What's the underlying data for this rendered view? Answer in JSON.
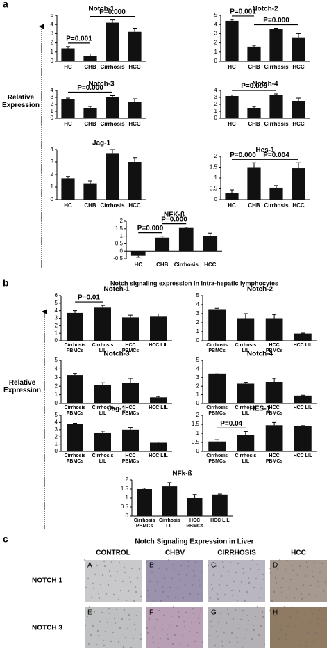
{
  "panel_labels": [
    "a",
    "b",
    "c"
  ],
  "y_label": "Relative Expression",
  "panel_b_title": "Notch signaling expression in  Intra-hepatic lymphocytes",
  "chart_data": [
    {
      "type": "bar",
      "title": "Notch-1",
      "categories": [
        "HC",
        "CHB",
        "Cirrhosis",
        "HCC"
      ],
      "values": [
        1.4,
        0.6,
        4.2,
        3.2
      ],
      "errors": [
        0.2,
        0.2,
        0.3,
        0.4
      ],
      "color": "#111111",
      "ylim": [
        0,
        5
      ],
      "yticks": [
        0,
        1,
        2,
        3,
        4,
        5
      ],
      "annotations": [
        {
          "text": "P=0.001",
          "between": [
            "HC",
            "CHB"
          ]
        },
        {
          "text": "P=0.000",
          "between": [
            "CHB",
            "HCC"
          ]
        }
      ]
    },
    {
      "type": "bar",
      "title": "Notch-2",
      "categories": [
        "HC",
        "CHB",
        "Cirrhosis",
        "HCC"
      ],
      "values": [
        4.4,
        1.6,
        3.5,
        2.6
      ],
      "errors": [
        0.15,
        0.15,
        0.1,
        0.4
      ],
      "color": "#111111",
      "ylim": [
        0,
        5
      ],
      "yticks": [
        0,
        1,
        2,
        3,
        4,
        5
      ],
      "annotations": [
        {
          "text": "P=0.001",
          "between": [
            "HC",
            "CHB"
          ]
        },
        {
          "text": "P=0.000",
          "between": [
            "CHB",
            "HCC"
          ]
        }
      ]
    },
    {
      "type": "bar",
      "title": "Notch-3",
      "categories": [
        "HC",
        "CHB",
        "Cirrhosis",
        "HCC"
      ],
      "values": [
        2.7,
        1.5,
        3.1,
        2.3
      ],
      "errors": [
        0.2,
        0.2,
        0.15,
        0.5
      ],
      "color": "#111111",
      "ylim": [
        0,
        4
      ],
      "yticks": [
        0,
        1,
        2,
        3,
        4
      ],
      "annotations": [
        {
          "text": "P=0.000",
          "between": [
            "HC",
            "Cirrhosis"
          ]
        }
      ]
    },
    {
      "type": "bar",
      "title": "Notch-4",
      "categories": [
        "HC",
        "CHB",
        "Cirrhosis",
        "HCC"
      ],
      "values": [
        3.2,
        1.5,
        3.4,
        2.5
      ],
      "errors": [
        0.15,
        0.2,
        0.1,
        0.4
      ],
      "color": "#111111",
      "ylim": [
        0,
        4
      ],
      "yticks": [
        0,
        1,
        2,
        3,
        4
      ],
      "annotations": [
        {
          "text": "P=0.000",
          "between": [
            "HC",
            "Cirrhosis"
          ]
        }
      ]
    },
    {
      "type": "bar",
      "title": "Jag-1",
      "categories": [
        "HC",
        "CHB",
        "Cirrhosis",
        "HCC"
      ],
      "values": [
        1.7,
        1.3,
        3.7,
        3.0
      ],
      "errors": [
        0.15,
        0.2,
        0.3,
        0.35
      ],
      "color": "#111111",
      "ylim": [
        0,
        4
      ],
      "yticks": [
        0,
        1,
        2,
        3,
        4
      ]
    },
    {
      "type": "bar",
      "title": "Hes-1",
      "categories": [
        "HC",
        "CHB",
        "Cirrhosis",
        "HCC"
      ],
      "values": [
        0.3,
        1.5,
        0.55,
        1.45
      ],
      "errors": [
        0.15,
        0.2,
        0.1,
        0.25
      ],
      "color": "#111111",
      "ylim": [
        0,
        2
      ],
      "yticks": [
        0,
        0.5,
        1,
        1.5,
        2
      ],
      "annotations": [
        {
          "text": "P=0.000",
          "between": [
            "HC",
            "CHB"
          ]
        },
        {
          "text": "P=0.004",
          "between": [
            "CHB",
            "HCC"
          ]
        }
      ]
    },
    {
      "type": "bar",
      "title": "NFK-ß",
      "categories": [
        "HC",
        "CHB",
        "Cirrhosis",
        "HCC"
      ],
      "values": [
        -0.3,
        0.9,
        1.55,
        1.0
      ],
      "errors": [
        0.1,
        0.1,
        0.05,
        0.2
      ],
      "color": "#111111",
      "ylim": [
        -0.5,
        2
      ],
      "yticks": [
        -0.5,
        0,
        0.5,
        1,
        1.5,
        2
      ],
      "annotations": [
        {
          "text": "P=0.000",
          "between": [
            "HC",
            "CHB"
          ]
        },
        {
          "text": "P=0.000",
          "between": [
            "CHB",
            "Cirrhosis"
          ]
        }
      ]
    },
    {
      "type": "bar",
      "title": "Notch-1",
      "categories": [
        "Cirrhosis PBMCs",
        "Cirrhosis LIL",
        "HCC PBMCs",
        "HCC LIL"
      ],
      "values": [
        3.7,
        4.4,
        3.1,
        3.2
      ],
      "errors": [
        0.3,
        0.3,
        0.3,
        0.35
      ],
      "color": "#111111",
      "ylim": [
        0,
        6
      ],
      "yticks": [
        0,
        1,
        2,
        3,
        4,
        5,
        6
      ],
      "annotations": [
        {
          "text": "P=0.01",
          "between": [
            "Cirrhosis PBMCs",
            "Cirrhosis LIL"
          ]
        }
      ]
    },
    {
      "type": "bar",
      "title": "Notch-2",
      "categories": [
        "Cirrhosis PBMCs",
        "Cirrhosis LIL",
        "HCC PBMCs",
        "HCC LIL"
      ],
      "values": [
        3.5,
        2.5,
        2.5,
        0.8
      ],
      "errors": [
        0.1,
        0.5,
        0.4,
        0.05
      ],
      "color": "#111111",
      "ylim": [
        0,
        5
      ],
      "yticks": [
        0,
        1,
        2,
        3,
        4,
        5
      ]
    },
    {
      "type": "bar",
      "title": "Notch-3",
      "categories": [
        "Cirrhosis PBMCs",
        "Cirrhosis LIL",
        "HCC PBMCs",
        "HCC LIL"
      ],
      "values": [
        3.3,
        2.1,
        2.4,
        0.7
      ],
      "errors": [
        0.15,
        0.3,
        0.5,
        0.1
      ],
      "color": "#111111",
      "ylim": [
        0,
        5
      ],
      "yticks": [
        0,
        1,
        2,
        3,
        4,
        5
      ]
    },
    {
      "type": "bar",
      "title": "Notch-4",
      "categories": [
        "Cirrhosis PBMCs",
        "Cirrhosis LIL",
        "HCC PBMCs",
        "HCC LIL"
      ],
      "values": [
        3.4,
        2.3,
        2.5,
        0.9
      ],
      "errors": [
        0.1,
        0.15,
        0.4,
        0.05
      ],
      "color": "#111111",
      "ylim": [
        0,
        5
      ],
      "yticks": [
        0,
        1,
        2,
        3,
        4,
        5
      ]
    },
    {
      "type": "bar",
      "title": "Jag-1",
      "categories": [
        "Cirrhosis PBMCs",
        "Cirrhosis LIL",
        "HCC PBMCs",
        "HCC LIL"
      ],
      "values": [
        3.8,
        2.6,
        3.0,
        1.2
      ],
      "errors": [
        0.1,
        0.2,
        0.3,
        0.1
      ],
      "color": "#111111",
      "ylim": [
        0,
        5
      ],
      "yticks": [
        0,
        1,
        2,
        3,
        4,
        5
      ]
    },
    {
      "type": "bar",
      "title": "HES-1",
      "categories": [
        "Cirrhosis PBMCs",
        "Cirrhosis LIL",
        "HCC PBMCs",
        "HCC LIL"
      ],
      "values": [
        0.55,
        0.9,
        1.45,
        1.4
      ],
      "errors": [
        0.1,
        0.2,
        0.15,
        0.03
      ],
      "color": "#111111",
      "ylim": [
        0,
        2
      ],
      "yticks": [
        0,
        0.5,
        1,
        1.5,
        2
      ],
      "annotations": [
        {
          "text": "P=0.04",
          "between": [
            "Cirrhosis PBMCs",
            "Cirrhosis LIL"
          ]
        }
      ]
    },
    {
      "type": "bar",
      "title": "NFk-ß",
      "categories": [
        "Cirrhosis PBMCs",
        "Cirrhosis LIL",
        "HCC PBMCs",
        "HCC LIL"
      ],
      "values": [
        1.5,
        1.65,
        1.0,
        1.2
      ],
      "errors": [
        0.05,
        0.2,
        0.2,
        0.03
      ],
      "color": "#111111",
      "ylim": [
        0,
        2
      ],
      "yticks": [
        0,
        0.5,
        1,
        1.5,
        2
      ]
    }
  ],
  "histology": {
    "title": "Notch Signaling Expression in Liver",
    "columns": [
      "CONTROL",
      "CHBV",
      "CIRRHOSIS",
      "HCC"
    ],
    "rows": [
      "NOTCH 1",
      "NOTCH 3"
    ],
    "tiles": [
      [
        "A",
        "B",
        "C",
        "D"
      ],
      [
        "E",
        "F",
        "G",
        "H"
      ]
    ]
  }
}
